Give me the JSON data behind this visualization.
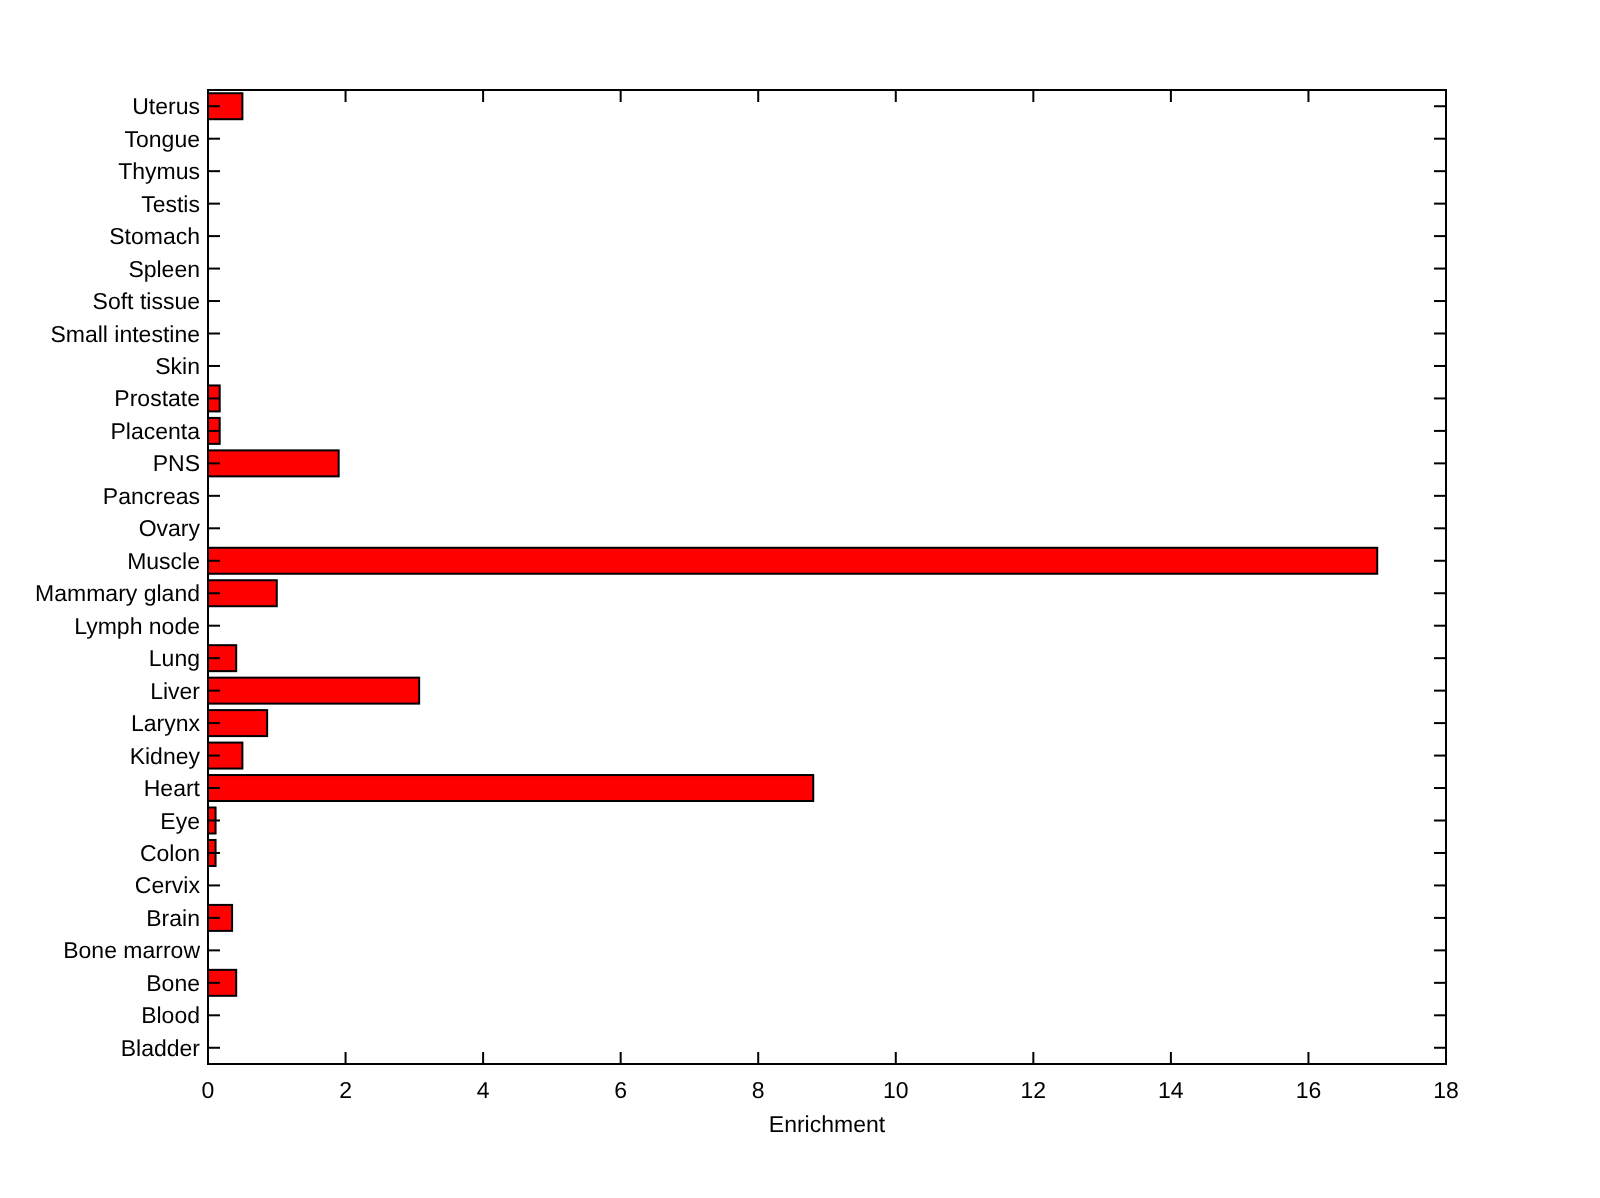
{
  "chart_data": {
    "type": "bar",
    "orientation": "horizontal",
    "xlabel": "Enrichment",
    "categories": [
      "Uterus",
      "Tongue",
      "Thymus",
      "Testis",
      "Stomach",
      "Spleen",
      "Soft tissue",
      "Small intestine",
      "Skin",
      "Prostate",
      "Placenta",
      "PNS",
      "Pancreas",
      "Ovary",
      "Muscle",
      "Mammary gland",
      "Lymph node",
      "Lung",
      "Liver",
      "Larynx",
      "Kidney",
      "Heart",
      "Eye",
      "Colon",
      "Cervix",
      "Brain",
      "Bone marrow",
      "Bone",
      "Blood",
      "Bladder"
    ],
    "values": [
      0.5,
      0,
      0,
      0,
      0,
      0,
      0,
      0,
      0,
      0.17,
      0.17,
      1.9,
      0,
      0,
      17,
      1.0,
      0,
      0.41,
      3.07,
      0.86,
      0.5,
      8.8,
      0.11,
      0.11,
      0,
      0.35,
      0,
      0.41,
      0,
      0
    ],
    "color": "#ff0000",
    "xlim": [
      0,
      18
    ],
    "xticks": [
      0,
      2,
      4,
      6,
      8,
      10,
      12,
      14,
      16,
      18
    ],
    "grid": false
  }
}
